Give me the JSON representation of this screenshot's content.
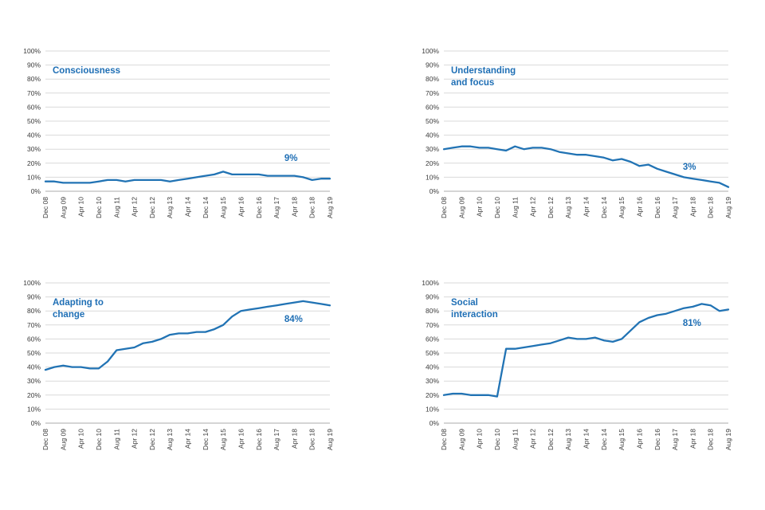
{
  "page": {
    "background": "#FFFFFF"
  },
  "style": {
    "accent": "#2173B4",
    "title_color": "#1F6FB5",
    "grid_color": "#D9D9D9",
    "axis_line_color": "#ABABAB",
    "tick_color": "#3B3B3B"
  },
  "chart_data": [
    {
      "type": "line",
      "title": "Consciousness",
      "end_label": "9%",
      "ylim": [
        0,
        100
      ],
      "y_tick_step": 10,
      "y_tick_suffix": "%",
      "x_tick_every": 2,
      "grid": "horizontal",
      "legend": "none",
      "categories": [
        "Dec 08",
        "Apr 09",
        "Aug 09",
        "Dec 09",
        "Apr 10",
        "Aug 10",
        "Dec 10",
        "Apr 11",
        "Aug 11",
        "Dec 11",
        "Apr 12",
        "Aug 12",
        "Dec 12",
        "Apr 13",
        "Aug 13",
        "Dec 13",
        "Apr 14",
        "Aug 14",
        "Dec 14",
        "Apr 15",
        "Aug 15",
        "Dec 15",
        "Apr 16",
        "Aug 16",
        "Dec 16",
        "Apr 17",
        "Aug 17",
        "Dec 17",
        "Apr 18",
        "Aug 18",
        "Dec 18",
        "Apr 19",
        "Aug 19"
      ],
      "values": [
        7,
        7,
        6,
        6,
        6,
        6,
        7,
        8,
        8,
        7,
        8,
        8,
        8,
        8,
        7,
        8,
        9,
        10,
        11,
        12,
        14,
        12,
        12,
        12,
        12,
        11,
        11,
        11,
        11,
        10,
        8,
        9,
        9
      ]
    },
    {
      "type": "line",
      "title": "Understanding\nand focus",
      "end_label": "3%",
      "ylim": [
        0,
        100
      ],
      "y_tick_step": 10,
      "y_tick_suffix": "%",
      "x_tick_every": 2,
      "grid": "horizontal",
      "legend": "none",
      "categories": [
        "Dec 08",
        "Apr 09",
        "Aug 09",
        "Dec 09",
        "Apr 10",
        "Aug 10",
        "Dec 10",
        "Apr 11",
        "Aug 11",
        "Dec 11",
        "Apr 12",
        "Aug 12",
        "Dec 12",
        "Apr 13",
        "Aug 13",
        "Dec 13",
        "Apr 14",
        "Aug 14",
        "Dec 14",
        "Apr 15",
        "Aug 15",
        "Dec 15",
        "Apr 16",
        "Aug 16",
        "Dec 16",
        "Apr 17",
        "Aug 17",
        "Dec 17",
        "Apr 18",
        "Aug 18",
        "Dec 18",
        "Apr 19",
        "Aug 19"
      ],
      "values": [
        30,
        31,
        32,
        32,
        31,
        31,
        30,
        29,
        32,
        30,
        31,
        31,
        30,
        28,
        27,
        26,
        26,
        25,
        24,
        22,
        23,
        21,
        18,
        19,
        16,
        14,
        12,
        10,
        9,
        8,
        7,
        6,
        3
      ]
    },
    {
      "type": "line",
      "title": "Adapting to\nchange",
      "end_label": "84%",
      "ylim": [
        0,
        100
      ],
      "y_tick_step": 10,
      "y_tick_suffix": "%",
      "x_tick_every": 2,
      "grid": "horizontal",
      "legend": "none",
      "categories": [
        "Dec 08",
        "Apr 09",
        "Aug 09",
        "Dec 09",
        "Apr 10",
        "Aug 10",
        "Dec 10",
        "Apr 11",
        "Aug 11",
        "Dec 11",
        "Apr 12",
        "Aug 12",
        "Dec 12",
        "Apr 13",
        "Aug 13",
        "Dec 13",
        "Apr 14",
        "Aug 14",
        "Dec 14",
        "Apr 15",
        "Aug 15",
        "Dec 15",
        "Apr 16",
        "Aug 16",
        "Dec 16",
        "Apr 17",
        "Aug 17",
        "Dec 17",
        "Apr 18",
        "Aug 18",
        "Dec 18",
        "Apr 19",
        "Aug 19"
      ],
      "values": [
        38,
        40,
        41,
        40,
        40,
        39,
        39,
        44,
        52,
        53,
        54,
        57,
        58,
        60,
        63,
        64,
        64,
        65,
        65,
        67,
        70,
        76,
        80,
        81,
        82,
        83,
        84,
        85,
        86,
        87,
        86,
        85,
        84
      ]
    },
    {
      "type": "line",
      "title": "Social\ninteraction",
      "end_label": "81%",
      "ylim": [
        0,
        100
      ],
      "y_tick_step": 10,
      "y_tick_suffix": "%",
      "x_tick_every": 2,
      "grid": "horizontal",
      "legend": "none",
      "categories": [
        "Dec 08",
        "Apr 09",
        "Aug 09",
        "Dec 09",
        "Apr 10",
        "Aug 10",
        "Dec 10",
        "Apr 11",
        "Aug 11",
        "Dec 11",
        "Apr 12",
        "Aug 12",
        "Dec 12",
        "Apr 13",
        "Aug 13",
        "Dec 13",
        "Apr 14",
        "Aug 14",
        "Dec 14",
        "Apr 15",
        "Aug 15",
        "Dec 15",
        "Apr 16",
        "Aug 16",
        "Dec 16",
        "Apr 17",
        "Aug 17",
        "Dec 17",
        "Apr 18",
        "Aug 18",
        "Dec 18",
        "Apr 19",
        "Aug 19"
      ],
      "values": [
        20,
        21,
        21,
        20,
        20,
        20,
        19,
        53,
        53,
        54,
        55,
        56,
        57,
        59,
        61,
        60,
        60,
        61,
        59,
        58,
        60,
        66,
        72,
        75,
        77,
        78,
        80,
        82,
        83,
        85,
        84,
        80,
        81
      ]
    }
  ]
}
